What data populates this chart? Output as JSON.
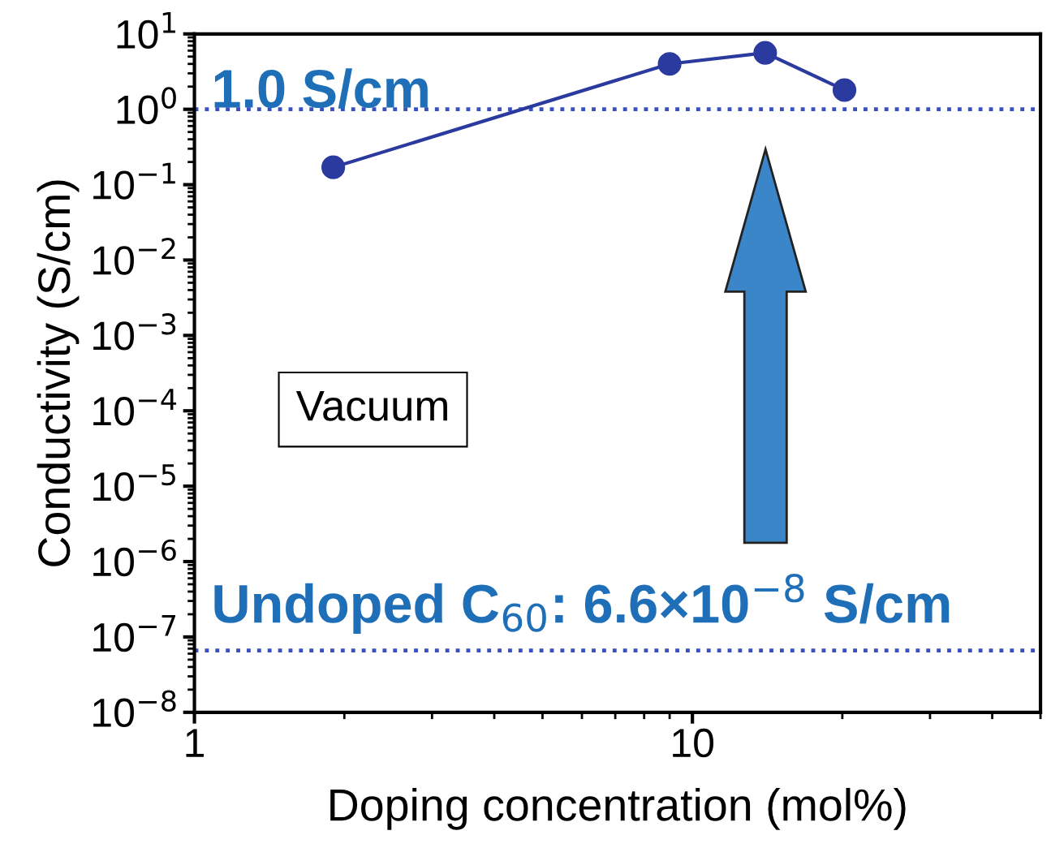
{
  "chart_data": {
    "type": "line",
    "xlabel": "Doping concentration (mol%)",
    "ylabel": "Conductivity (S/cm)",
    "series": [
      {
        "color": "#2b3a9e",
        "x": [
          1.9,
          9.0,
          14,
          20.2
        ],
        "values": [
          0.17,
          4.0,
          5.6,
          1.8
        ]
      }
    ],
    "marker": "circle",
    "line_style": "solid",
    "log": "xy",
    "xlim": [
      1,
      50
    ],
    "ylim": [
      1e-08,
      10
    ],
    "xticks": [
      1,
      10
    ],
    "yticks": [
      {
        "value": 10,
        "label": "10$^{1}$"
      },
      {
        "value": 1,
        "label": "10$^{0}$"
      },
      {
        "value": 0.1,
        "label": "10$^{−1}$"
      },
      {
        "value": 0.01,
        "label": "10$^{−2}$"
      },
      {
        "value": 0.001,
        "label": "10$^{−3}$"
      },
      {
        "value": 0.0001,
        "label": "10$^{−4}$"
      },
      {
        "value": 1e-05,
        "label": "10$^{−5}$"
      },
      {
        "value": 1e-06,
        "label": "10$^{−6}$"
      },
      {
        "value": 1e-07,
        "label": "10$^{−7}$"
      },
      {
        "value": 1e-08,
        "label": "10$^{−8}$"
      }
    ],
    "ref_lines": [
      {
        "axis": "y",
        "value": 1.0,
        "color": "#3a4fc0",
        "line_style": "dotted"
      },
      {
        "axis": "y",
        "value": 6.6e-08,
        "color": "#3a4fc0",
        "line_style": "dotted"
      }
    ],
    "annotations": [
      "1.0 S/cm",
      "Undoped C$_{60}$: 6.6×10$^{−8}$ S/cm",
      "Vacuum"
    ],
    "grid": false,
    "legend": false
  }
}
